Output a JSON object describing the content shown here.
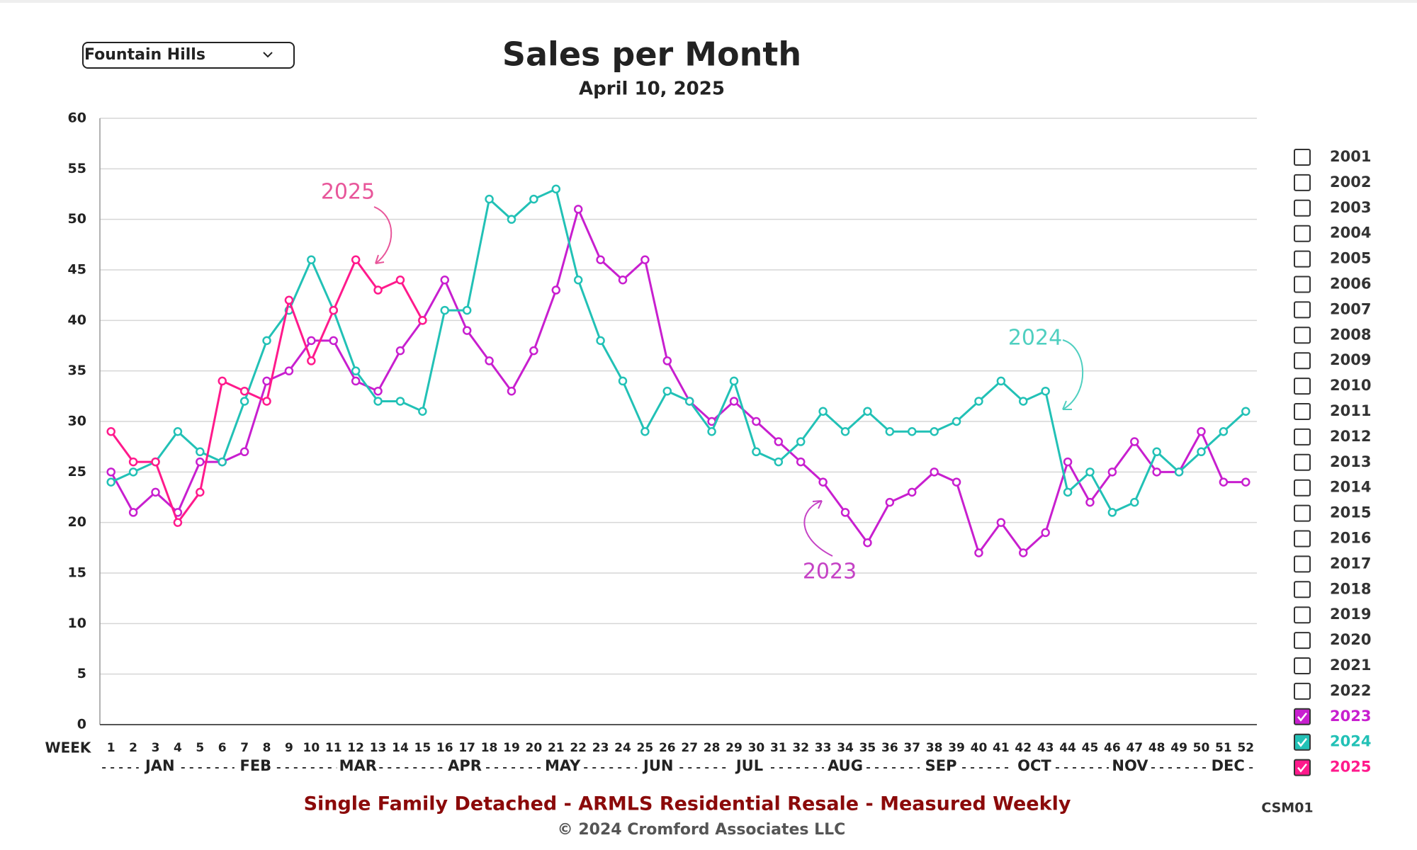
{
  "dropdown": {
    "selected": "Fountain Hills"
  },
  "chart_data": {
    "type": "line",
    "title": "Sales per Month",
    "subtitle": "April 10, 2025",
    "x_label": "WEEK",
    "categories": [
      "1",
      "2",
      "3",
      "4",
      "5",
      "6",
      "7",
      "8",
      "9",
      "10",
      "11",
      "12",
      "13",
      "14",
      "15",
      "16",
      "17",
      "18",
      "19",
      "20",
      "21",
      "22",
      "23",
      "24",
      "25",
      "26",
      "27",
      "28",
      "29",
      "30",
      "31",
      "32",
      "33",
      "34",
      "35",
      "36",
      "37",
      "38",
      "39",
      "40",
      "41",
      "42",
      "43",
      "44",
      "45",
      "46",
      "47",
      "48",
      "49",
      "50",
      "51",
      "52"
    ],
    "months": [
      "JAN",
      "FEB",
      "MAR",
      "APR",
      "MAY",
      "JUN",
      "JUL",
      "AUG",
      "SEP",
      "OCT",
      "NOV",
      "DEC"
    ],
    "ylim": [
      0,
      60
    ],
    "yticks": [
      0,
      5,
      10,
      15,
      20,
      25,
      30,
      35,
      40,
      45,
      50,
      55,
      60
    ],
    "grid": true,
    "series": [
      {
        "name": "2023",
        "color": "#c81fcf",
        "values": [
          25,
          21,
          23,
          21,
          26,
          26,
          27,
          34,
          35,
          38,
          38,
          34,
          33,
          37,
          40,
          44,
          39,
          36,
          33,
          37,
          43,
          51,
          46,
          44,
          46,
          36,
          32,
          30,
          32,
          30,
          28,
          26,
          24,
          21,
          18,
          22,
          23,
          25,
          24,
          17,
          20,
          17,
          19,
          26,
          22,
          25,
          28,
          25,
          25,
          29,
          24,
          24
        ]
      },
      {
        "name": "2024",
        "color": "#22c1b6",
        "values": [
          24,
          25,
          26,
          29,
          27,
          26,
          32,
          38,
          41,
          46,
          41,
          35,
          32,
          32,
          31,
          41,
          41,
          52,
          50,
          52,
          53,
          44,
          38,
          34,
          29,
          33,
          32,
          29,
          34,
          27,
          26,
          28,
          31,
          29,
          31,
          29,
          29,
          29,
          30,
          32,
          34,
          32,
          33,
          23,
          25,
          21,
          22,
          27,
          25,
          27,
          29,
          31
        ]
      },
      {
        "name": "2025",
        "color": "#ff1a8c",
        "values": [
          29,
          26,
          26,
          20,
          23,
          34,
          33,
          32,
          42,
          36,
          41,
          46,
          43,
          44,
          40,
          null,
          null,
          null,
          null,
          null,
          null,
          null,
          null,
          null,
          null,
          null,
          null,
          null,
          null,
          null,
          null,
          null,
          null,
          null,
          null,
          null,
          null,
          null,
          null,
          null,
          null,
          null,
          null,
          null,
          null,
          null,
          null,
          null,
          null,
          null,
          null,
          null
        ]
      }
    ],
    "legend_unchecked": [
      "2001",
      "2002",
      "2003",
      "2004",
      "2005",
      "2006",
      "2007",
      "2008",
      "2009",
      "2010",
      "2011",
      "2012",
      "2013",
      "2014",
      "2015",
      "2016",
      "2017",
      "2018",
      "2019",
      "2020",
      "2021",
      "2022"
    ],
    "annotations": [
      {
        "text": "2025",
        "color": "#e8569a"
      },
      {
        "text": "2024",
        "color": "#4fcfc0"
      },
      {
        "text": "2023",
        "color": "#c542c5"
      }
    ]
  },
  "footer": {
    "description": "Single Family Detached - ARMLS Residential Resale - Measured Weekly",
    "copyright": "© 2024 Cromford Associates LLC",
    "code": "CSM01"
  }
}
